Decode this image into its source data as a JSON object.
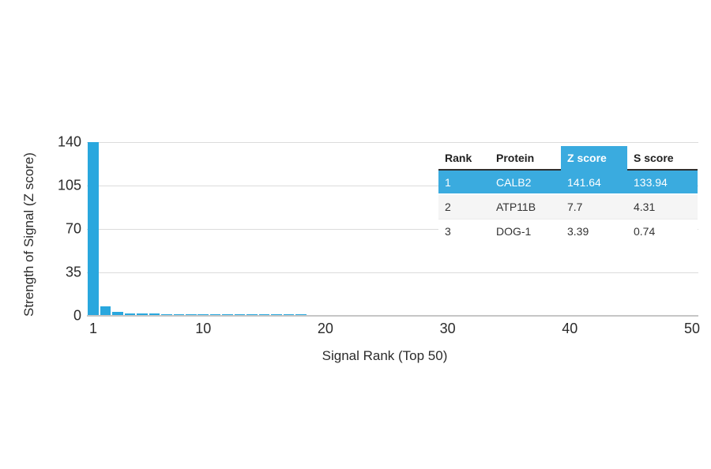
{
  "colors": {
    "bar": "#29a7de",
    "table_highlight": "#3aabdf",
    "gridline": "#dcdcdc",
    "axis_line": "#c6c6c6",
    "text": "#2b2b2b"
  },
  "chart_data": {
    "type": "bar",
    "title": "",
    "xlabel": "Signal Rank (Top 50)",
    "ylabel": "Strength of Signal (Z score)",
    "xlim": [
      0.5,
      50.5
    ],
    "ylim": [
      0,
      140
    ],
    "x_ticks": [
      1,
      10,
      20,
      30,
      40,
      50
    ],
    "y_ticks": [
      0,
      35,
      70,
      105,
      140
    ],
    "grid": "horizontal",
    "legend": "none",
    "x": [
      1,
      2,
      3,
      4,
      5,
      6,
      7,
      8,
      9,
      10,
      11,
      12,
      13,
      14,
      15,
      16,
      17,
      18,
      19,
      20,
      21,
      22,
      23,
      24,
      25,
      26,
      27,
      28,
      29,
      30,
      31,
      32,
      33,
      34,
      35,
      36,
      37,
      38,
      39,
      40,
      41,
      42,
      43,
      44,
      45,
      46,
      47,
      48,
      49,
      50
    ],
    "values": [
      141.64,
      7.7,
      3.39,
      1.9,
      1.8,
      1.7,
      1.6,
      1.5,
      1.4,
      1.3,
      1.25,
      1.2,
      1.15,
      1.1,
      1.1,
      1.05,
      1.0,
      1.0,
      0.95,
      0.95,
      0.9,
      0.9,
      0.9,
      0.85,
      0.85,
      0.85,
      0.8,
      0.8,
      0.8,
      0.8,
      0.75,
      0.75,
      0.75,
      0.75,
      0.7,
      0.7,
      0.7,
      0.7,
      0.7,
      0.65,
      0.65,
      0.65,
      0.65,
      0.6,
      0.6,
      0.6,
      0.6,
      0.6,
      0.55,
      0.55
    ],
    "note": "Bar 1 (Z=141.64) is clipped at the 140 axis maximum"
  },
  "table": {
    "headers": [
      "Rank",
      "Protein",
      "Z score",
      "S score"
    ],
    "highlighted_column": "Z score",
    "rows": [
      {
        "rank": "1",
        "protein": "CALB2",
        "z": "141.64",
        "s": "133.94",
        "highlighted": true
      },
      {
        "rank": "2",
        "protein": "ATP11B",
        "z": "7.7",
        "s": "4.31",
        "highlighted": false
      },
      {
        "rank": "3",
        "protein": "DOG-1",
        "z": "3.39",
        "s": "0.74",
        "highlighted": false
      }
    ]
  }
}
